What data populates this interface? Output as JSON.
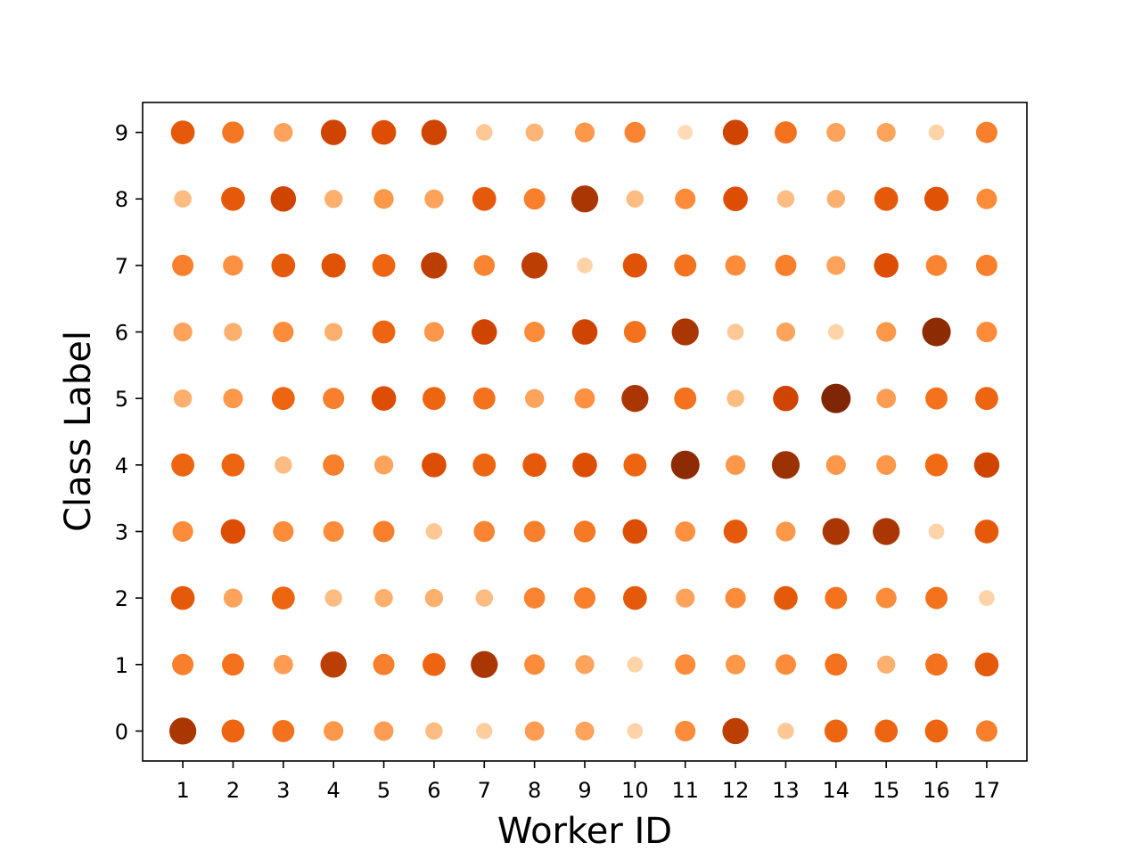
{
  "chart_data": {
    "type": "scatter",
    "title": "",
    "xlabel": "Worker ID",
    "ylabel": "Class Label",
    "x_ticks": [
      "1",
      "2",
      "3",
      "4",
      "5",
      "6",
      "7",
      "8",
      "9",
      "10",
      "11",
      "12",
      "13",
      "14",
      "15",
      "16",
      "17"
    ],
    "y_ticks": [
      "0",
      "1",
      "2",
      "3",
      "4",
      "5",
      "6",
      "7",
      "8",
      "9"
    ],
    "xlim": [
      0.2,
      17.8
    ],
    "ylim": [
      -0.45,
      9.45
    ],
    "grid": false,
    "legend": "none",
    "colormap": "Oranges",
    "value_range": [
      0,
      10
    ],
    "value_by_label": [
      [
        8.5,
        6.0,
        5.5,
        4.0,
        3.8,
        2.5,
        1.8,
        3.8,
        3.5,
        1.5,
        4.5,
        8.0,
        2.0,
        6.0,
        6.0,
        6.0,
        5.0
      ],
      [
        5.0,
        5.5,
        3.8,
        8.0,
        5.0,
        6.0,
        8.5,
        4.5,
        3.5,
        1.5,
        4.5,
        4.0,
        4.5,
        5.5,
        3.0,
        5.5,
        6.5
      ],
      [
        6.5,
        3.5,
        6.0,
        2.5,
        3.0,
        3.0,
        2.5,
        4.8,
        5.0,
        6.5,
        3.5,
        4.5,
        6.5,
        5.5,
        4.5,
        5.5,
        1.5
      ],
      [
        4.5,
        7.0,
        4.5,
        4.5,
        5.0,
        2.0,
        4.8,
        5.0,
        5.2,
        7.0,
        4.3,
        6.5,
        4.0,
        8.5,
        8.5,
        1.5,
        6.5
      ],
      [
        6.0,
        6.0,
        2.5,
        5.0,
        3.5,
        7.0,
        6.0,
        6.5,
        7.0,
        6.0,
        9.5,
        4.0,
        9.0,
        4.0,
        4.0,
        5.8,
        7.5
      ],
      [
        3.0,
        4.0,
        6.0,
        5.0,
        7.0,
        6.0,
        5.5,
        3.5,
        4.3,
        8.5,
        5.5,
        2.5,
        7.5,
        10.0,
        3.8,
        5.5,
        6.0
      ],
      [
        3.5,
        3.0,
        4.5,
        3.0,
        6.0,
        4.0,
        7.5,
        4.5,
        7.5,
        5.5,
        8.5,
        2.0,
        3.5,
        1.5,
        4.0,
        9.5,
        4.5
      ],
      [
        5.0,
        4.3,
        6.5,
        6.8,
        6.0,
        8.0,
        4.8,
        8.0,
        1.5,
        6.8,
        5.5,
        4.5,
        5.0,
        3.5,
        7.0,
        4.8,
        5.0
      ],
      [
        2.5,
        6.5,
        7.5,
        3.0,
        4.0,
        3.5,
        6.5,
        5.0,
        8.5,
        2.5,
        4.5,
        7.0,
        2.5,
        3.0,
        6.5,
        6.8,
        4.5
      ],
      [
        6.5,
        5.3,
        3.5,
        7.5,
        7.0,
        7.5,
        2.0,
        2.8,
        4.0,
        4.8,
        1.0,
        7.5,
        5.5,
        3.5,
        3.5,
        1.5,
        5.0
      ]
    ]
  }
}
